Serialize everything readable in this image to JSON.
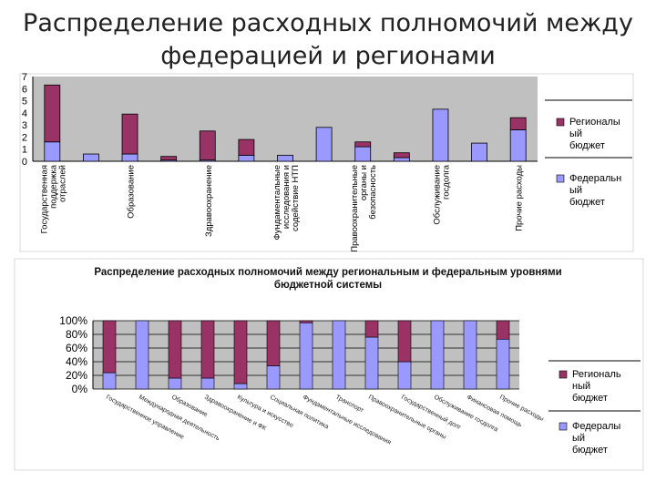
{
  "page": {
    "title_line1": "Распределение расходных полномочий между",
    "title_line2": "федерацией и регионами"
  },
  "colors": {
    "regional": "#993366",
    "federal": "#9999ff",
    "plot_bg": "#c0c0c0"
  },
  "chart_data": [
    {
      "type": "bar",
      "stacked": true,
      "title": "",
      "categories": [
        "Государственная поддержка отраслей",
        "",
        "Образование",
        "",
        "Здравоохранение",
        "",
        "Фундаментальные исследования и содействие НТП",
        "",
        "Правоохранительные органы и безопасность",
        "",
        "Обслуживание госдолга",
        "",
        "Прочие расходы"
      ],
      "series": [
        {
          "name": "Федеральный бюджет",
          "color": "#9999ff",
          "values": [
            1.6,
            0.6,
            0.6,
            0.1,
            0.1,
            0.5,
            0.5,
            2.8,
            1.2,
            0.3,
            4.3,
            1.5,
            2.6
          ]
        },
        {
          "name": "Региональный бюджет",
          "color": "#993366",
          "values": [
            4.7,
            0,
            3.3,
            0.3,
            2.4,
            1.3,
            0,
            0,
            0.4,
            0.4,
            0,
            0,
            1.0
          ]
        }
      ],
      "legend": [
        "Регионалы ый бюджет",
        "Федеральн ый бюджет"
      ],
      "legend_position": "right",
      "yticks": [
        "0",
        "1",
        "2",
        "3",
        "4",
        "5",
        "6",
        "7"
      ],
      "ylim": [
        0,
        7
      ],
      "grid": false
    },
    {
      "type": "bar",
      "stacked": true,
      "percent": true,
      "title": "Распределение расходных полномочий между региональным и федеральным уровнями бюджетной системы",
      "categories": [
        "Государственное управление",
        "Международная деятельность",
        "Образование",
        "Здравоохранение и ФК",
        "Культура и искусство",
        "Социальная политика",
        "Фундаментальные исследования",
        "Транспорт",
        "Правоохранительные органы",
        "Государственный долг",
        "Обслуживание госдолга",
        "Финансовая помощь",
        "Прочие расходы"
      ],
      "series": [
        {
          "name": "Федеральный бюджет",
          "color": "#9999ff",
          "values": [
            24,
            100,
            16,
            16,
            8,
            34,
            97,
            100,
            76,
            40,
            100,
            100,
            73
          ]
        },
        {
          "name": "Региональный бюджет",
          "color": "#993366",
          "values": [
            76,
            0,
            84,
            84,
            92,
            66,
            3,
            0,
            24,
            60,
            0,
            0,
            27
          ]
        }
      ],
      "legend": [
        "Региональ ный бюджет",
        "Федералы ый бюджет"
      ],
      "legend_position": "right",
      "yticks": [
        "0%",
        "20%",
        "40%",
        "60%",
        "80%",
        "100%"
      ],
      "ylim": [
        0,
        100
      ],
      "grid": true
    }
  ]
}
